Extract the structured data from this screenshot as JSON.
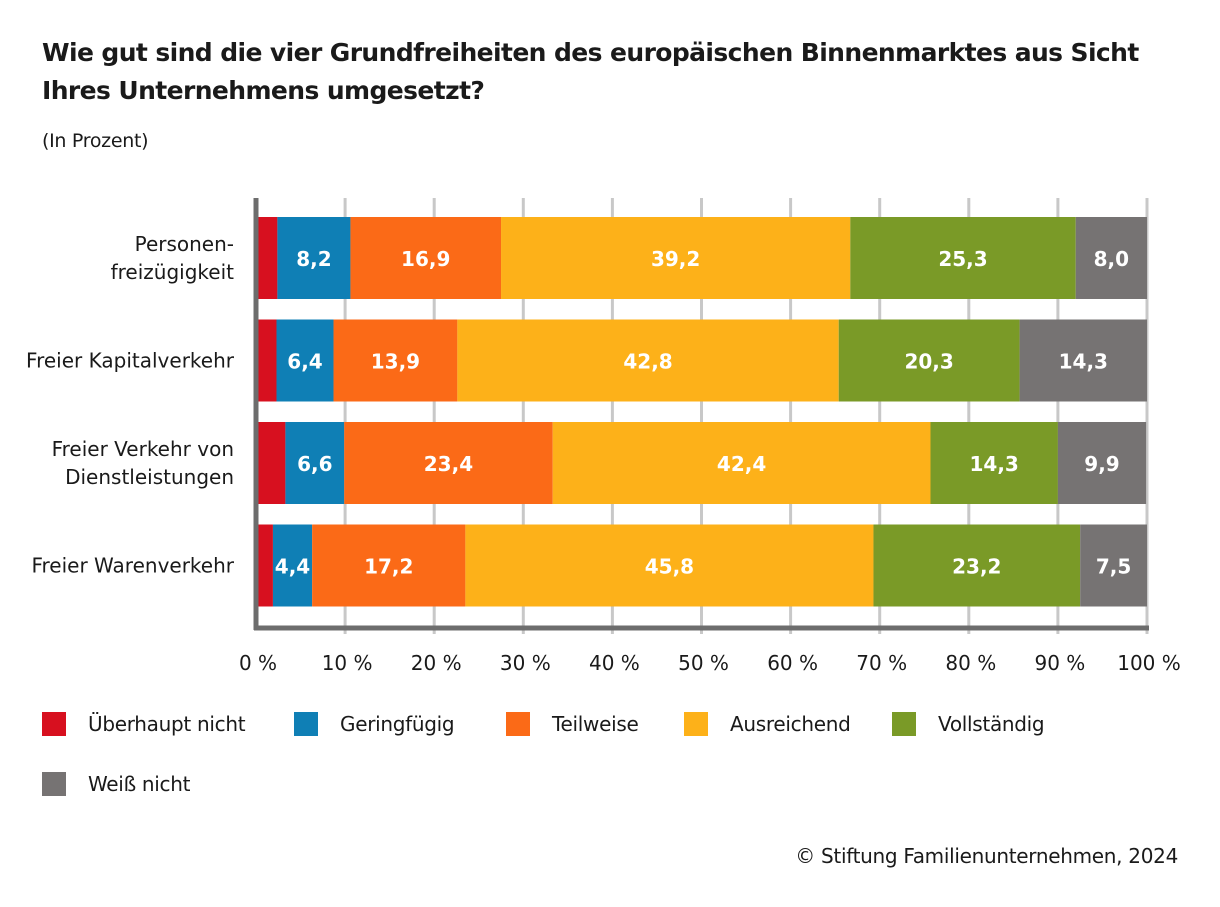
{
  "title": "Wie gut sind die vier Grundfreiheiten des europäischen Binnenmarktes aus Sicht Ihres Unternehmens umgesetzt?",
  "subtitle": "(In Prozent)",
  "source": "© Stiftung Familienunternehmen, 2024",
  "colors": {
    "ueberhaupt_nicht": "#d7101f",
    "geringfuegig": "#0f7fb5",
    "teilweise": "#fb6a17",
    "ausreichend": "#fdb119",
    "vollstaendig": "#7a9a27",
    "weiss_nicht": "#767373",
    "grid": "#c8c8c8",
    "axis": "#6d6d6d"
  },
  "legend": [
    {
      "label": "Überhaupt nicht",
      "color": "#d7101f",
      "icon": "square-swatch"
    },
    {
      "label": "Geringfügig",
      "color": "#0f7fb5",
      "icon": "square-swatch"
    },
    {
      "label": "Teilweise",
      "color": "#fb6a17",
      "icon": "square-swatch"
    },
    {
      "label": "Ausreichend",
      "color": "#fdb119",
      "icon": "square-swatch"
    },
    {
      "label": "Vollständig",
      "color": "#7a9a27",
      "icon": "square-swatch"
    },
    {
      "label": "Weiß nicht",
      "color": "#767373",
      "icon": "square-swatch"
    }
  ],
  "chart_data": {
    "type": "bar",
    "orientation": "horizontal",
    "stacked": true,
    "title": "Wie gut sind die vier Grundfreiheiten des europäischen Binnenmarktes aus Sicht Ihres Unternehmens umgesetzt?",
    "subtitle": "(In Prozent)",
    "xlabel": "",
    "ylabel": "",
    "xlim": [
      0,
      100
    ],
    "grid": true,
    "legend_position": "bottom",
    "x_ticks": [
      0,
      10,
      20,
      30,
      40,
      50,
      60,
      70,
      80,
      90,
      100
    ],
    "x_tick_labels": [
      "0 %",
      "10 %",
      "20 %",
      "30 %",
      "40 %",
      "50 %",
      "60 %",
      "70 %",
      "80 %",
      "90 %",
      "100 %"
    ],
    "categories": [
      [
        "Personen-",
        "freizügigkeit"
      ],
      [
        "Freier Kapitalverkehr"
      ],
      [
        "Freier Verkehr von",
        "Dienstleistungen"
      ],
      [
        "Freier Warenverkehr"
      ]
    ],
    "series": [
      {
        "name": "Überhaupt nicht",
        "color": "#d7101f",
        "values": [
          2.4,
          2.3,
          3.3,
          1.9
        ],
        "labels": [
          "",
          "",
          "",
          ""
        ]
      },
      {
        "name": "Geringfügig",
        "color": "#0f7fb5",
        "values": [
          8.2,
          6.4,
          6.6,
          4.4
        ],
        "labels": [
          "8,2",
          "6,4",
          "6,6",
          "4,4"
        ]
      },
      {
        "name": "Teilweise",
        "color": "#fb6a17",
        "values": [
          16.9,
          13.9,
          23.4,
          17.2
        ],
        "labels": [
          "16,9",
          "13,9",
          "23,4",
          "17,2"
        ]
      },
      {
        "name": "Ausreichend",
        "color": "#fdb119",
        "values": [
          39.2,
          42.8,
          42.4,
          45.8
        ],
        "labels": [
          "39,2",
          "42,8",
          "42,4",
          "45,8"
        ]
      },
      {
        "name": "Vollständig",
        "color": "#7a9a27",
        "values": [
          25.3,
          20.3,
          14.3,
          23.2
        ],
        "labels": [
          "25,3",
          "20,3",
          "14,3",
          "23,2"
        ]
      },
      {
        "name": "Weiß nicht",
        "color": "#767373",
        "values": [
          8.0,
          14.3,
          9.9,
          7.5
        ],
        "labels": [
          "8,0",
          "14,3",
          "9,9",
          "7,5"
        ]
      }
    ]
  }
}
